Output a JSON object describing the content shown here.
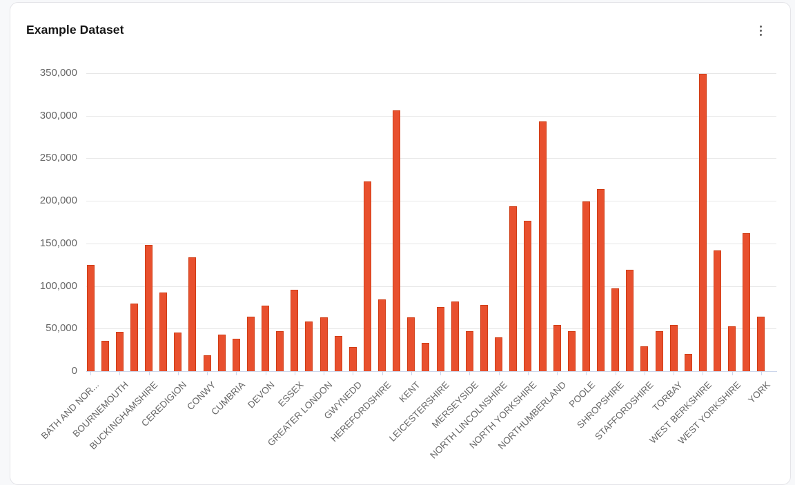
{
  "card": {
    "title": "Example Dataset",
    "menu_icon": "kebab-menu"
  },
  "chart_data": {
    "type": "bar",
    "title": "Example Dataset",
    "xlabel": "",
    "ylabel": "",
    "ylim": [
      0,
      350000
    ],
    "ytick_step": 50000,
    "ytick_labels": [
      "0",
      "50,000",
      "100,000",
      "150,000",
      "200,000",
      "250,000",
      "300,000",
      "350,000"
    ],
    "grid": true,
    "legend": "none",
    "bar_color": "#e8502e",
    "bar_border_color": "#d03d15",
    "axis_color": "#ccd6eb",
    "gridline_color": "#e7e7e7",
    "label_color": "#666666",
    "bars": [
      {
        "label": "BATH AND NOR...",
        "value": 125000
      },
      {
        "label": "",
        "value": 36000
      },
      {
        "label": "BOURNEMOUTH",
        "value": 46000
      },
      {
        "label": "",
        "value": 79000
      },
      {
        "label": "BUCKINGHAMSHIRE",
        "value": 148000
      },
      {
        "label": "",
        "value": 92000
      },
      {
        "label": "CEREDIGION",
        "value": 45000
      },
      {
        "label": "",
        "value": 134000
      },
      {
        "label": "CONWY",
        "value": 19000
      },
      {
        "label": "",
        "value": 43000
      },
      {
        "label": "CUMBRIA",
        "value": 38000
      },
      {
        "label": "",
        "value": 64000
      },
      {
        "label": "DEVON",
        "value": 77000
      },
      {
        "label": "",
        "value": 47000
      },
      {
        "label": "ESSEX",
        "value": 96000
      },
      {
        "label": "",
        "value": 58000
      },
      {
        "label": "GREATER LONDON",
        "value": 63000
      },
      {
        "label": "",
        "value": 41000
      },
      {
        "label": "GWYNEDD",
        "value": 28000
      },
      {
        "label": "",
        "value": 223000
      },
      {
        "label": "HEREFORDSHIRE",
        "value": 84000
      },
      {
        "label": "",
        "value": 306000
      },
      {
        "label": "KENT",
        "value": 63000
      },
      {
        "label": "",
        "value": 33000
      },
      {
        "label": "LEICESTERSHIRE",
        "value": 75000
      },
      {
        "label": "",
        "value": 82000
      },
      {
        "label": "MERSEYSIDE",
        "value": 47000
      },
      {
        "label": "",
        "value": 78000
      },
      {
        "label": "NORTH LINCOLNSHIRE",
        "value": 40000
      },
      {
        "label": "",
        "value": 194000
      },
      {
        "label": "NORTH YORKSHIRE",
        "value": 177000
      },
      {
        "label": "",
        "value": 293000
      },
      {
        "label": "NORTHUMBERLAND",
        "value": 54000
      },
      {
        "label": "",
        "value": 47000
      },
      {
        "label": "POOLE",
        "value": 199000
      },
      {
        "label": "",
        "value": 214000
      },
      {
        "label": "SHROPSHIRE",
        "value": 97000
      },
      {
        "label": "",
        "value": 119000
      },
      {
        "label": "STAFFORDSHIRE",
        "value": 29000
      },
      {
        "label": "",
        "value": 47000
      },
      {
        "label": "TORBAY",
        "value": 54000
      },
      {
        "label": "",
        "value": 20000
      },
      {
        "label": "WEST BERKSHIRE",
        "value": 349000
      },
      {
        "label": "",
        "value": 142000
      },
      {
        "label": "WEST YORKSHIRE",
        "value": 53000
      },
      {
        "label": "",
        "value": 162000
      },
      {
        "label": "YORK",
        "value": 64000
      }
    ]
  }
}
